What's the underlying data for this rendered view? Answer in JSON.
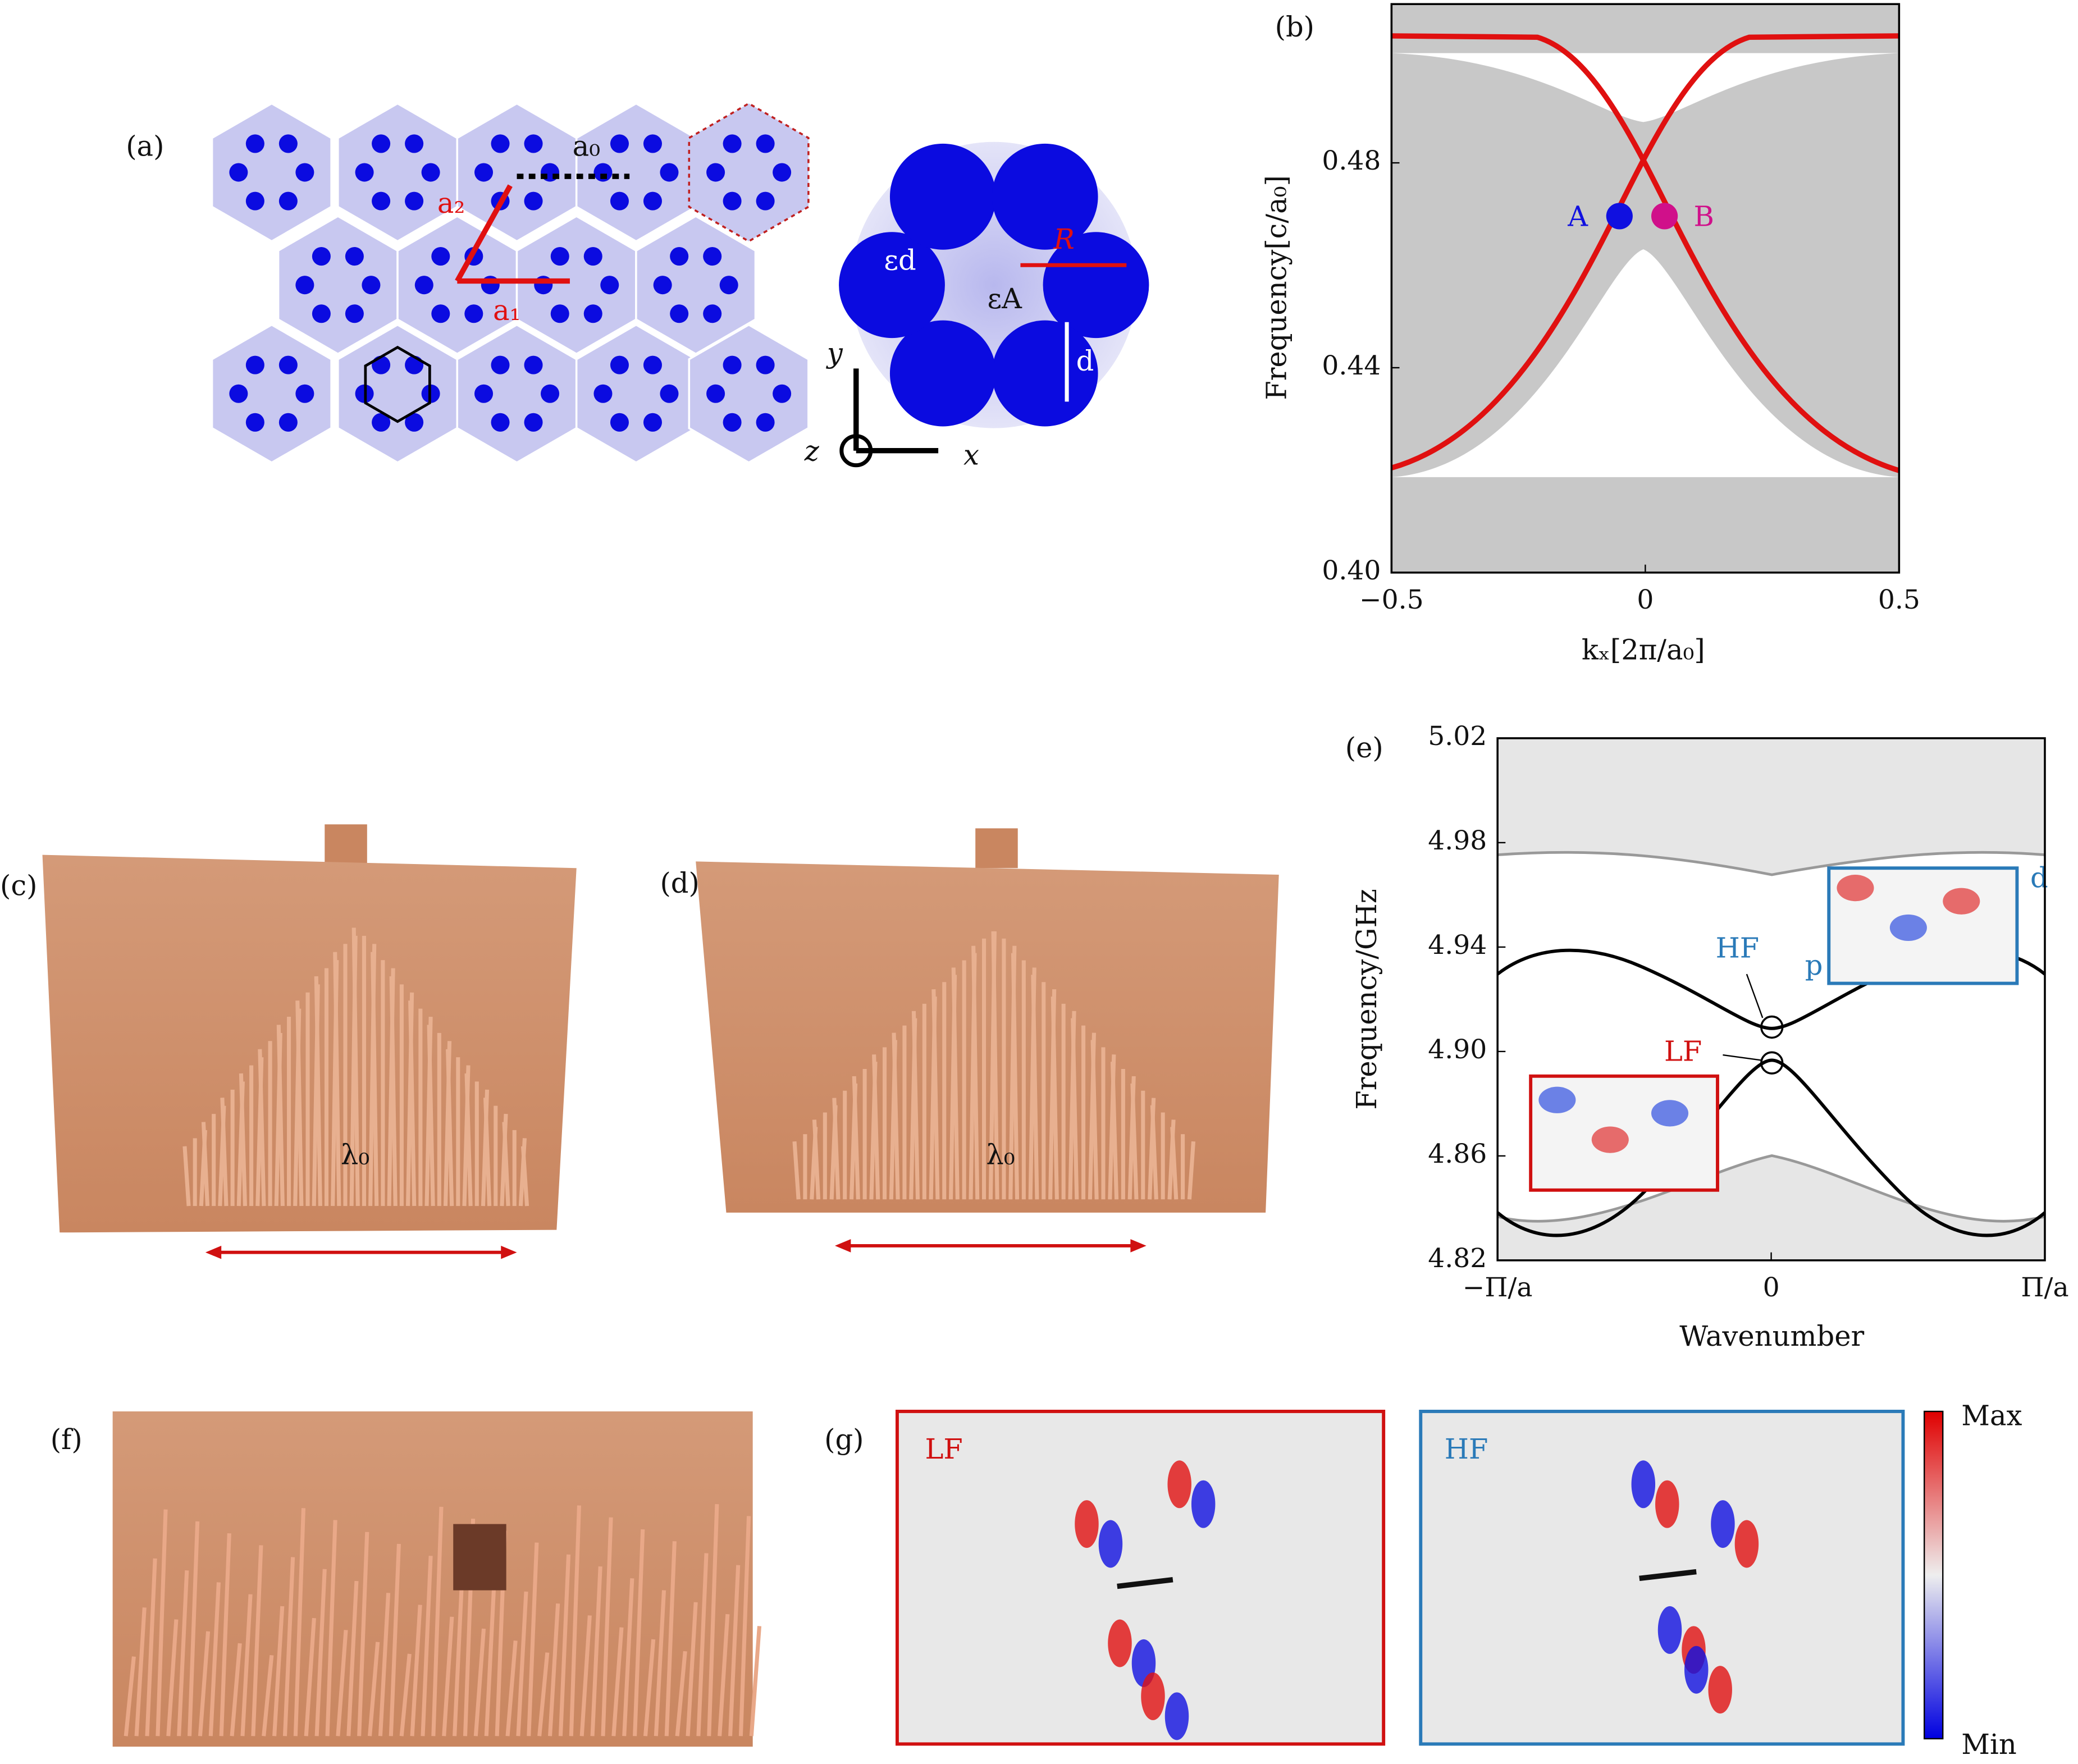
{
  "panels": {
    "a": {
      "label": "(a)",
      "lattice_vector_1": "a₁",
      "lattice_vector_2": "a₂",
      "lattice_constant": "a₀",
      "radius": "R",
      "diameter": "d",
      "rod_permittivity": "εd",
      "air_permittivity": "εA",
      "axis_x": "x",
      "axis_y": "y",
      "axis_z": "z"
    },
    "b": {
      "label": "(b)",
      "ylabel": "Frequency[c/a₀]",
      "xlabel": "kₓ[2π/a₀]",
      "xlim": [
        -0.5,
        0.5
      ],
      "ylim": [
        0.4,
        0.511
      ],
      "xticks": [
        {
          "value": -0.5,
          "label": "−0.5"
        },
        0,
        0.5
      ],
      "yticks": [
        {
          "value": 0.4,
          "label": "0.40"
        },
        0.44,
        0.48
      ],
      "point_a": "A",
      "point_b": "B"
    },
    "c": {
      "label": "(c)",
      "scale": "λ₀"
    },
    "d": {
      "label": "(d)",
      "scale": "λ₀"
    },
    "e": {
      "label": "(e)",
      "ylabel": "Frequency/GHz",
      "xlabel": "Wavenumber",
      "xlim": [
        -1,
        1
      ],
      "ylim": [
        4.82,
        5.02
      ],
      "xticks": [
        {
          "value": -1,
          "label": "−Π/a"
        },
        0,
        {
          "value": 1,
          "label": "Π/a"
        }
      ],
      "yticks": [
        4.82,
        4.86,
        {
          "value": 4.9,
          "label": "4.90"
        },
        4.94,
        4.98,
        5.02
      ],
      "high_mode": "HF",
      "low_mode": "LF",
      "inset_d": "d",
      "inset_p": "p"
    },
    "f": {
      "label": "(f)"
    },
    "g": {
      "label": "(g)",
      "left_title": "LF",
      "right_title": "HF",
      "colorbar_max": "Max",
      "colorbar_min": "Min"
    }
  }
}
